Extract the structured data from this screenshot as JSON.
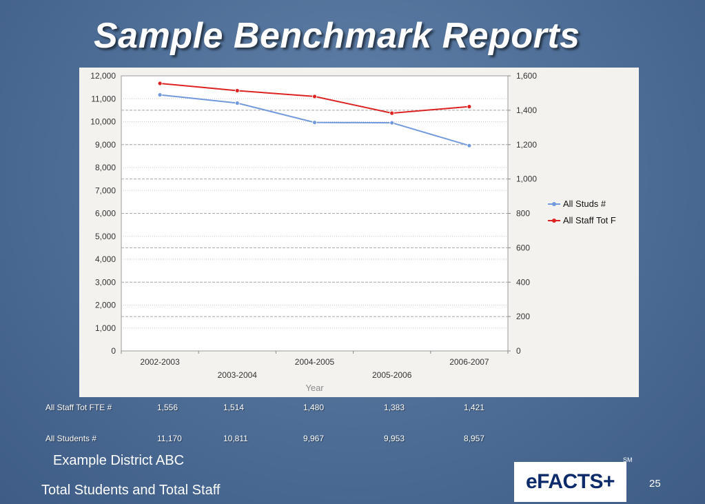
{
  "slide": {
    "title": "Sample Benchmark Reports",
    "district": "Example District ABC",
    "subtitle": "Total Students and Total Staff",
    "logo_text": "eFACTS+",
    "sm": "SM",
    "page_number": "25"
  },
  "chart_data": {
    "type": "line",
    "categories": [
      "2002-2003",
      "2003-2004",
      "2004-2005",
      "2005-2006",
      "2006-2007"
    ],
    "xlabel": "Year",
    "y_left": {
      "min": 0,
      "max": 12000,
      "ticks": [
        "0",
        "1,000",
        "2,000",
        "3,000",
        "4,000",
        "5,000",
        "6,000",
        "7,000",
        "8,000",
        "9,000",
        "10,000",
        "11,000",
        "12,000"
      ]
    },
    "y_right": {
      "min": 0,
      "max": 1600,
      "ticks": [
        "0",
        "200",
        "400",
        "600",
        "800",
        "1,000",
        "1,200",
        "1,400",
        "1,600"
      ]
    },
    "series": [
      {
        "name": "All Studs #",
        "axis": "left",
        "color": "#7399dd",
        "values": [
          11170,
          10811,
          9967,
          9953,
          8957
        ]
      },
      {
        "name": "All Staff Tot F",
        "axis": "right",
        "color": "#dd2222",
        "values": [
          1556,
          1514,
          1480,
          1383,
          1421
        ]
      }
    ],
    "legend_position": "right",
    "grid": true
  },
  "table": {
    "rows": [
      {
        "label": "All Staff Tot FTE #",
        "values": [
          "1,556",
          "1,514",
          "1,480",
          "1,383",
          "1,421"
        ]
      },
      {
        "label": "All Students #",
        "values": [
          "11,170",
          "10,811",
          "9,967",
          "9,953",
          "8,957"
        ]
      }
    ]
  }
}
